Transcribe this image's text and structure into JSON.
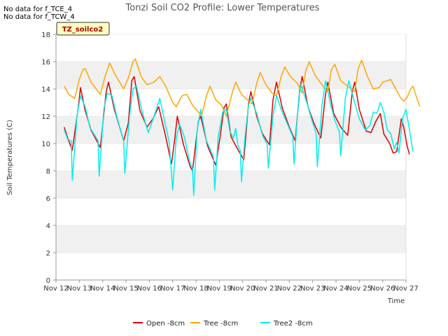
{
  "notes": [
    "No data for f_TCE_4",
    "No data for f_TCW_4"
  ],
  "badge": {
    "label": "TZ_soilco2",
    "bg": "#ffffc0",
    "text_color": "#aa0000"
  },
  "colors": {
    "band": "#f0f0f0",
    "grid": "#dddddd",
    "axis": "#999999"
  },
  "chart_data": {
    "type": "line",
    "title": "Tonzi Soil CO2 Profile: Lower Temperatures",
    "xlabel": "Time",
    "ylabel": "Soil Temperatures (C)",
    "ylim": [
      0,
      18
    ],
    "xlim": [
      12,
      27
    ],
    "yticks": [
      0,
      2,
      4,
      6,
      8,
      10,
      12,
      14,
      16,
      18
    ],
    "xticks": [
      12,
      13,
      14,
      15,
      16,
      17,
      18,
      19,
      20,
      21,
      22,
      23,
      24,
      25,
      26,
      27
    ],
    "xtick_labels": [
      "Nov 12",
      "Nov 13",
      "Nov 14",
      "Nov 15",
      "Nov 16",
      "Nov 17",
      "Nov 18",
      "Nov 19",
      "Nov 20",
      "Nov 21",
      "Nov 22",
      "Nov 23",
      "Nov 24",
      "Nov 25",
      "Nov 26",
      "Nov 27"
    ],
    "grid": "horizontal bands",
    "legend_position": "bottom",
    "x_unit": "day of November",
    "series": [
      {
        "name": "Open -8cm",
        "color": "#dd0000",
        "points": [
          [
            12.35,
            11.2
          ],
          [
            12.5,
            10.4
          ],
          [
            12.7,
            9.5
          ],
          [
            12.95,
            12.6
          ],
          [
            13.05,
            14.1
          ],
          [
            13.25,
            12.4
          ],
          [
            13.5,
            11.0
          ],
          [
            13.9,
            9.7
          ],
          [
            14.15,
            13.8
          ],
          [
            14.25,
            14.5
          ],
          [
            14.5,
            12.5
          ],
          [
            14.9,
            10.2
          ],
          [
            15.1,
            11.5
          ],
          [
            15.25,
            14.6
          ],
          [
            15.35,
            14.9
          ],
          [
            15.6,
            12.4
          ],
          [
            15.9,
            11.2
          ],
          [
            16.15,
            11.8
          ],
          [
            16.4,
            12.7
          ],
          [
            16.7,
            10.5
          ],
          [
            16.95,
            8.5
          ],
          [
            17.1,
            10.5
          ],
          [
            17.2,
            12.0
          ],
          [
            17.45,
            10.0
          ],
          [
            17.75,
            8.3
          ],
          [
            17.85,
            8.0
          ],
          [
            18.1,
            11.6
          ],
          [
            18.2,
            12.0
          ],
          [
            18.5,
            9.8
          ],
          [
            18.85,
            8.4
          ],
          [
            19.05,
            10.7
          ],
          [
            19.2,
            12.6
          ],
          [
            19.3,
            12.9
          ],
          [
            19.5,
            10.5
          ],
          [
            19.75,
            9.7
          ],
          [
            20.05,
            8.8
          ],
          [
            20.25,
            12.9
          ],
          [
            20.35,
            13.8
          ],
          [
            20.6,
            12.0
          ],
          [
            20.85,
            10.7
          ],
          [
            21.15,
            9.9
          ],
          [
            21.3,
            13.2
          ],
          [
            21.45,
            14.5
          ],
          [
            21.7,
            12.6
          ],
          [
            22.0,
            11.2
          ],
          [
            22.25,
            10.2
          ],
          [
            22.45,
            14.0
          ],
          [
            22.55,
            14.9
          ],
          [
            22.8,
            12.7
          ],
          [
            23.05,
            11.5
          ],
          [
            23.35,
            10.4
          ],
          [
            23.55,
            13.6
          ],
          [
            23.65,
            14.5
          ],
          [
            23.9,
            12.2
          ],
          [
            24.2,
            11.2
          ],
          [
            24.5,
            10.6
          ],
          [
            24.7,
            13.8
          ],
          [
            24.8,
            14.5
          ],
          [
            25.0,
            12.5
          ],
          [
            25.3,
            10.9
          ],
          [
            25.5,
            10.8
          ],
          [
            25.7,
            11.6
          ],
          [
            25.9,
            12.2
          ],
          [
            26.05,
            10.7
          ],
          [
            26.3,
            10.0
          ],
          [
            26.45,
            9.3
          ],
          [
            26.6,
            9.4
          ],
          [
            26.8,
            11.8
          ],
          [
            26.9,
            11.2
          ],
          [
            27.05,
            9.8
          ],
          [
            27.15,
            9.2
          ]
        ]
      },
      {
        "name": "Tree -8cm",
        "color": "#ffa500",
        "points": [
          [
            12.35,
            14.2
          ],
          [
            12.55,
            13.6
          ],
          [
            12.8,
            13.3
          ],
          [
            13.0,
            14.7
          ],
          [
            13.15,
            15.4
          ],
          [
            13.25,
            15.5
          ],
          [
            13.5,
            14.5
          ],
          [
            13.9,
            13.6
          ],
          [
            14.1,
            14.9
          ],
          [
            14.3,
            15.9
          ],
          [
            14.55,
            15.0
          ],
          [
            14.9,
            14.0
          ],
          [
            15.1,
            14.8
          ],
          [
            15.3,
            16.0
          ],
          [
            15.4,
            16.2
          ],
          [
            15.65,
            14.9
          ],
          [
            15.9,
            14.3
          ],
          [
            16.2,
            14.5
          ],
          [
            16.45,
            14.9
          ],
          [
            16.7,
            14.2
          ],
          [
            17.0,
            13.0
          ],
          [
            17.15,
            12.7
          ],
          [
            17.4,
            13.5
          ],
          [
            17.6,
            13.6
          ],
          [
            17.85,
            12.8
          ],
          [
            18.1,
            12.3
          ],
          [
            18.25,
            12.1
          ],
          [
            18.45,
            13.5
          ],
          [
            18.6,
            14.2
          ],
          [
            18.85,
            13.2
          ],
          [
            19.1,
            12.8
          ],
          [
            19.3,
            12.0
          ],
          [
            19.55,
            13.7
          ],
          [
            19.7,
            14.5
          ],
          [
            19.95,
            13.6
          ],
          [
            20.2,
            13.2
          ],
          [
            20.4,
            12.9
          ],
          [
            20.6,
            14.4
          ],
          [
            20.75,
            15.2
          ],
          [
            21.0,
            14.3
          ],
          [
            21.3,
            13.6
          ],
          [
            21.45,
            13.5
          ],
          [
            21.65,
            14.9
          ],
          [
            21.8,
            15.6
          ],
          [
            22.05,
            14.9
          ],
          [
            22.35,
            14.4
          ],
          [
            22.55,
            13.7
          ],
          [
            22.7,
            15.3
          ],
          [
            22.85,
            16.0
          ],
          [
            23.1,
            15.0
          ],
          [
            23.4,
            14.3
          ],
          [
            23.65,
            13.8
          ],
          [
            23.8,
            15.4
          ],
          [
            23.95,
            15.8
          ],
          [
            24.2,
            14.6
          ],
          [
            24.5,
            14.2
          ],
          [
            24.8,
            13.8
          ],
          [
            24.95,
            15.5
          ],
          [
            25.1,
            16.1
          ],
          [
            25.35,
            14.9
          ],
          [
            25.6,
            14.0
          ],
          [
            25.85,
            14.1
          ],
          [
            26.0,
            14.5
          ],
          [
            26.2,
            14.6
          ],
          [
            26.35,
            14.7
          ],
          [
            26.5,
            14.2
          ],
          [
            26.75,
            13.4
          ],
          [
            26.9,
            13.1
          ],
          [
            27.05,
            13.4
          ],
          [
            27.2,
            14.0
          ],
          [
            27.3,
            14.2
          ],
          [
            27.45,
            13.4
          ],
          [
            27.6,
            12.7
          ]
        ]
      },
      {
        "name": "Tree2 -8cm",
        "color": "#00eeee",
        "points": [
          [
            12.35,
            11.0
          ],
          [
            12.5,
            10.3
          ],
          [
            12.65,
            10.2
          ],
          [
            12.7,
            7.3
          ],
          [
            12.9,
            12.0
          ],
          [
            13.05,
            13.5
          ],
          [
            13.25,
            12.7
          ],
          [
            13.45,
            11.2
          ],
          [
            13.8,
            10.2
          ],
          [
            13.85,
            7.6
          ],
          [
            14.05,
            12.5
          ],
          [
            14.2,
            13.7
          ],
          [
            14.4,
            13.5
          ],
          [
            14.6,
            12.0
          ],
          [
            14.9,
            10.2
          ],
          [
            14.95,
            7.8
          ],
          [
            15.15,
            12.0
          ],
          [
            15.3,
            14.0
          ],
          [
            15.45,
            14.2
          ],
          [
            15.7,
            12.3
          ],
          [
            15.95,
            10.8
          ],
          [
            16.1,
            11.5
          ],
          [
            16.3,
            12.5
          ],
          [
            16.45,
            13.3
          ],
          [
            16.65,
            11.7
          ],
          [
            16.85,
            10.1
          ],
          [
            17.0,
            6.6
          ],
          [
            17.15,
            10.4
          ],
          [
            17.3,
            11.4
          ],
          [
            17.5,
            10.5
          ],
          [
            17.75,
            8.5
          ],
          [
            17.85,
            8.2
          ],
          [
            17.9,
            6.2
          ],
          [
            18.05,
            11.0
          ],
          [
            18.2,
            12.5
          ],
          [
            18.45,
            10.2
          ],
          [
            18.75,
            9.0
          ],
          [
            18.8,
            6.6
          ],
          [
            18.95,
            10.5
          ],
          [
            19.15,
            12.3
          ],
          [
            19.3,
            12.5
          ],
          [
            19.45,
            10.9
          ],
          [
            19.6,
            10.4
          ],
          [
            19.7,
            11.1
          ],
          [
            19.8,
            9.8
          ],
          [
            19.9,
            9.5
          ],
          [
            19.95,
            7.2
          ],
          [
            20.1,
            10.5
          ],
          [
            20.25,
            12.8
          ],
          [
            20.35,
            13.3
          ],
          [
            20.6,
            12.2
          ],
          [
            20.85,
            10.6
          ],
          [
            21.05,
            9.9
          ],
          [
            21.1,
            8.2
          ],
          [
            21.3,
            12.0
          ],
          [
            21.45,
            13.5
          ],
          [
            21.65,
            12.5
          ],
          [
            21.9,
            11.5
          ],
          [
            22.15,
            10.5
          ],
          [
            22.2,
            8.5
          ],
          [
            22.4,
            13.3
          ],
          [
            22.5,
            14.3
          ],
          [
            22.75,
            13.0
          ],
          [
            22.95,
            11.8
          ],
          [
            23.15,
            10.7
          ],
          [
            23.2,
            8.3
          ],
          [
            23.4,
            12.8
          ],
          [
            23.55,
            14.6
          ],
          [
            23.75,
            13.0
          ],
          [
            23.95,
            11.7
          ],
          [
            24.15,
            10.8
          ],
          [
            24.2,
            9.1
          ],
          [
            24.4,
            13.3
          ],
          [
            24.55,
            14.6
          ],
          [
            24.8,
            13.0
          ],
          [
            25.0,
            11.8
          ],
          [
            25.25,
            11.0
          ],
          [
            25.45,
            11.3
          ],
          [
            25.6,
            12.3
          ],
          [
            25.75,
            12.2
          ],
          [
            25.9,
            13.0
          ],
          [
            26.05,
            12.3
          ],
          [
            26.2,
            11.0
          ],
          [
            26.35,
            10.7
          ],
          [
            26.5,
            9.6
          ],
          [
            26.6,
            10.1
          ],
          [
            26.7,
            9.3
          ],
          [
            26.85,
            11.8
          ],
          [
            27.0,
            12.5
          ],
          [
            27.15,
            11.0
          ],
          [
            27.3,
            9.4
          ]
        ]
      }
    ]
  }
}
